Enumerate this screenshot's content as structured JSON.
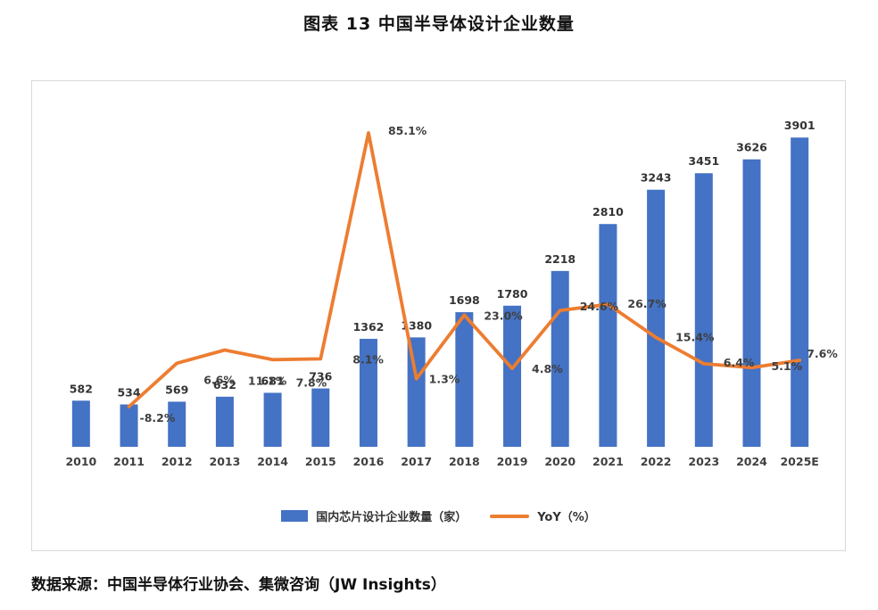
{
  "title": "图表 13 中国半导体设计企业数量",
  "source": "数据来源：中国半导体行业协会、集微咨询（JW Insights）",
  "legend": {
    "bars": "国内芯片设计企业数量（家）",
    "line": "YoY（%）"
  },
  "colors": {
    "bar": "#4472C4",
    "line": "#ED7D31",
    "value_label": "#333333",
    "pct_label": "#3f3f3f",
    "axis_label": "#404040",
    "frame_border": "#d9d9d9"
  },
  "chart_data": {
    "type": "bar",
    "subtype": "bar-plus-line-dual-axis",
    "title": "图表 13 中国半导体设计企业数量",
    "categories": [
      "2010",
      "2011",
      "2012",
      "2013",
      "2014",
      "2015",
      "2016",
      "2017",
      "2018",
      "2019",
      "2020",
      "2021",
      "2022",
      "2023",
      "2024",
      "2025E"
    ],
    "series": [
      {
        "name": "国内芯片设计企业数量（家）",
        "type": "bar",
        "axis": "left",
        "values": [
          582,
          534,
          569,
          632,
          681,
          736,
          1362,
          1380,
          1698,
          1780,
          2218,
          2810,
          3243,
          3451,
          3626,
          3901
        ]
      },
      {
        "name": "YoY（%）",
        "type": "line",
        "axis": "right",
        "values": [
          null,
          -8.2,
          6.6,
          11.1,
          7.8,
          8.1,
          85.1,
          1.3,
          23.0,
          4.8,
          24.6,
          26.7,
          15.4,
          6.4,
          5.1,
          7.6
        ]
      }
    ],
    "bar_labels": [
      "582",
      "534",
      "569",
      "632",
      "681",
      "736",
      "1362",
      "1380",
      "1698",
      "1780",
      "2218",
      "2810",
      "3243",
      "3451",
      "3626",
      "3901"
    ],
    "line_labels": [
      null,
      "-8.2%",
      "6.6%",
      "11.1%",
      "7.8%",
      "8.1%",
      "85.1%",
      "1.3%",
      "23.0%",
      "4.8%",
      "24.6%",
      "26.7%",
      "15.4%",
      "6.4%",
      "5.1%",
      "7.6%"
    ],
    "xlabel": "",
    "ylabel_left": "家",
    "ylabel_right": "%",
    "left_axis_range": [
      0,
      4500
    ],
    "right_axis_range": [
      -20,
      100
    ],
    "grid": false,
    "legend_position": "bottom"
  }
}
